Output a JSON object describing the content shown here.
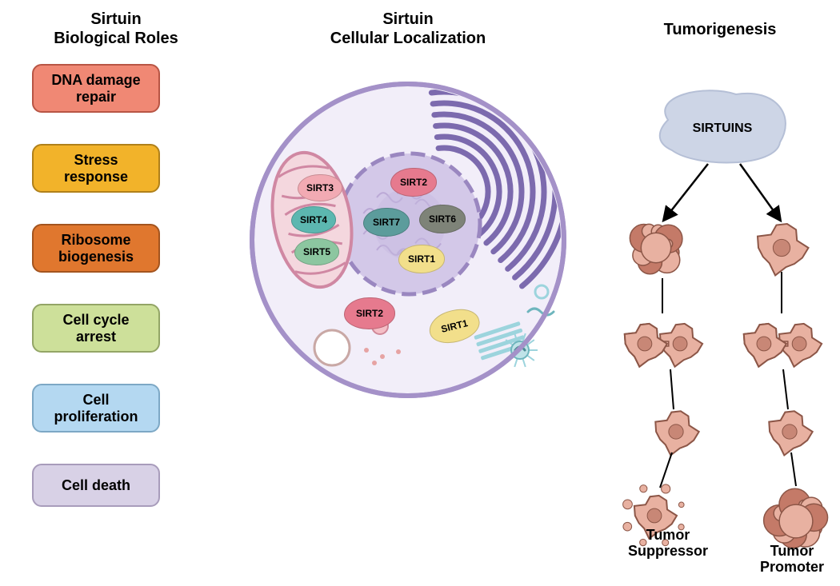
{
  "titles": {
    "roles": "Sirtuin\nBiological Roles",
    "localization": "Sirtuin\nCellular Localization",
    "tumorigenesis": "Tumorigenesis"
  },
  "roles": [
    {
      "label": "DNA damage\nrepair",
      "bg": "#f08874",
      "border": "#b85544"
    },
    {
      "label": "Stress\nresponse",
      "bg": "#f2b32a",
      "border": "#b0801a"
    },
    {
      "label": "Ribosome\nbiogenesis",
      "bg": "#e0772e",
      "border": "#a3541e"
    },
    {
      "label": "Cell cycle\narrest",
      "bg": "#cde09a",
      "border": "#93a566"
    },
    {
      "label": "Cell\nproliferation",
      "bg": "#b4d8f1",
      "border": "#7da8c5"
    },
    {
      "label": "Cell death",
      "bg": "#d8d1e6",
      "border": "#a89cbb"
    }
  ],
  "sirt_colors": {
    "SIRT1": "#f2df8b",
    "SIRT2": "#e67a8e",
    "SIRT3": "#f2aab3",
    "SIRT4": "#5cb7b0",
    "SIRT5": "#8cc6a0",
    "SIRT6": "#7e8378",
    "SIRT7": "#5c9c9c"
  },
  "cell": {
    "membrane_outline": "#a491c8",
    "cytoplasm_fill": "#f2eef9",
    "nucleus_outline": "#9a87c0",
    "nucleus_fill": "#d3c8e8",
    "nucleolus_fill": "#c5b8df",
    "er_stroke": "#7c6aae",
    "mito_outline": "#d088a3",
    "mito_fill": "#f4d7de",
    "chromatin": "#bba9d6",
    "cytoskeleton": "#9cd4dd",
    "vesicle_outline": "#c9a8a5",
    "vesicle_fill": "#ffffff",
    "small_dots": "#e6a3a3"
  },
  "tumor": {
    "sirtuins_label": "SIRTUINS",
    "sirtuins_fill": "#cdd5e6",
    "sirtuins_outline": "#b5bfd6",
    "arrow_color": "#000000",
    "cell_fill": "#e8b1a1",
    "cell_dark": "#c47a68",
    "cell_outline": "#8c5647",
    "nucleus_fill": "#c88776",
    "suppressor_label": "Tumor\nSuppressor",
    "promoter_label": "Tumor\nPromoter"
  }
}
